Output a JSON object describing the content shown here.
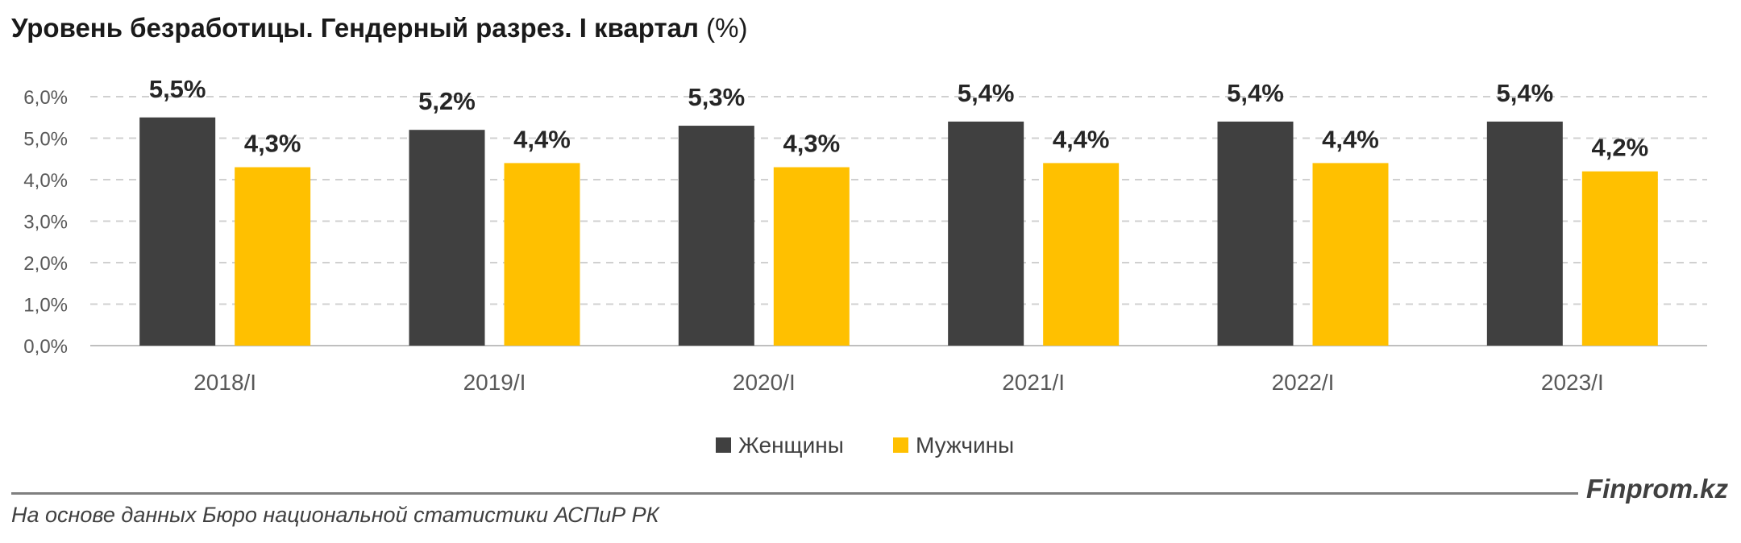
{
  "title": {
    "bold": "Уровень безработицы. Гендерный разрез. I квартал",
    "unit": "(%)"
  },
  "brand": "Finprom.kz",
  "source": "На основе данных Бюро национальной статистики АСПиР РК",
  "chart_data": {
    "type": "bar",
    "title": "Уровень безработицы. Гендерный разрез. I квартал (%)",
    "categories": [
      "2018/I",
      "2019/I",
      "2020/I",
      "2021/I",
      "2022/I",
      "2023/I"
    ],
    "series": [
      {
        "name": "Женщины",
        "color": "#404040",
        "values": [
          5.5,
          5.2,
          5.3,
          5.4,
          5.4,
          5.4
        ],
        "labels": [
          "5,5%",
          "5,2%",
          "5,3%",
          "5,4%",
          "5,4%",
          "5,4%"
        ]
      },
      {
        "name": "Мужчины",
        "color": "#ffc000",
        "values": [
          4.3,
          4.4,
          4.3,
          4.4,
          4.4,
          4.2
        ],
        "labels": [
          "4,3%",
          "4,4%",
          "4,3%",
          "4,4%",
          "4,4%",
          "4,2%"
        ]
      }
    ],
    "ylim": [
      0,
      6
    ],
    "yticks": [
      0,
      1,
      2,
      3,
      4,
      5,
      6
    ],
    "ytick_labels": [
      "0,0%",
      "1,0%",
      "2,0%",
      "3,0%",
      "4,0%",
      "5,0%",
      "6,0%"
    ],
    "grid": true,
    "legend": "bottom"
  }
}
